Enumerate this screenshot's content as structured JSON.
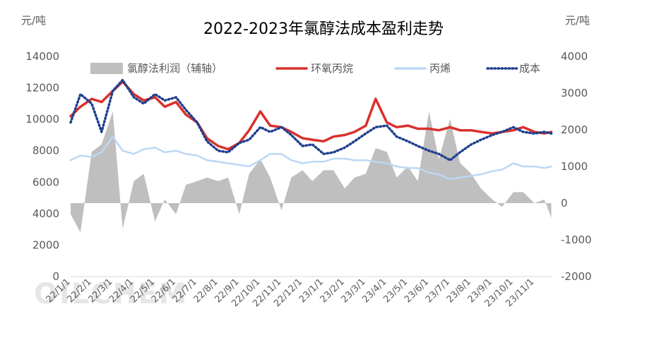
{
  "chart_data": {
    "type": "line",
    "title": "2022-2023年氯醇法成本盈利走势",
    "left_unit": "元/吨",
    "right_unit": "元/吨",
    "watermark": "OILCHEM",
    "ylim": [
      0,
      14000
    ],
    "yticks": [
      "0",
      "2000",
      "4000",
      "6000",
      "8000",
      "10000",
      "12000",
      "14000"
    ],
    "y2lim": [
      -2000,
      4000
    ],
    "y2ticks": [
      "-2000",
      "-1000",
      "0",
      "1000",
      "2000",
      "3000",
      "4000"
    ],
    "x_ticks": [
      "22/1/1",
      "22/2/1",
      "22/3/1",
      "22/4/1",
      "22/5/1",
      "22/6/1",
      "22/7/1",
      "22/8/1",
      "22/9/1",
      "22/10/1",
      "22/11/1",
      "22/12/1",
      "23/1/1",
      "23/2/1",
      "23/3/1",
      "23/4/1",
      "23/5/1",
      "23/6/1",
      "23/7/1",
      "23/8/1",
      "23/9/1",
      "23/10/1",
      "23/11/1"
    ],
    "legend": [
      "氯醇法利润（辅轴）",
      "环氧丙烷",
      "丙烯",
      "成本"
    ],
    "colors": {
      "profit": "#bfbfbf",
      "po": "#d9302b",
      "propylene": "#bcd7f5",
      "cost": "#1f3f8f",
      "axis": "#d9d9d9",
      "text": "#595959"
    },
    "series": [
      {
        "name": "氯醇法利润（辅轴）",
        "axis": "right",
        "type": "area",
        "x": [
          "22/1/1",
          "22/1/15",
          "22/2/1",
          "22/2/15",
          "22/3/1",
          "22/3/15",
          "22/4/1",
          "22/4/15",
          "22/5/1",
          "22/5/15",
          "22/6/1",
          "22/6/15",
          "22/7/1",
          "22/7/15",
          "22/8/1",
          "22/8/15",
          "22/9/1",
          "22/9/15",
          "22/10/1",
          "22/10/15",
          "22/11/1",
          "22/11/15",
          "22/12/1",
          "22/12/15",
          "23/1/1",
          "23/1/15",
          "23/2/1",
          "23/2/15",
          "23/3/1",
          "23/3/15",
          "23/4/1",
          "23/4/15",
          "23/5/1",
          "23/5/15",
          "23/6/1",
          "23/6/15",
          "23/7/1",
          "23/7/15",
          "23/8/1",
          "23/8/15",
          "23/9/1",
          "23/9/15",
          "23/10/1",
          "23/10/15",
          "23/11/1",
          "23/11/15",
          "23/11/25"
        ],
        "values": [
          -300,
          -800,
          1400,
          1600,
          2500,
          -700,
          600,
          800,
          -500,
          100,
          -300,
          500,
          600,
          700,
          600,
          700,
          -300,
          800,
          1200,
          700,
          -200,
          700,
          900,
          600,
          900,
          900,
          400,
          700,
          800,
          1500,
          1400,
          700,
          1000,
          600,
          2500,
          1200,
          2300,
          1100,
          800,
          400,
          100,
          -100,
          300,
          300,
          0,
          100,
          -400
        ]
      },
      {
        "name": "环氧丙烷",
        "axis": "left",
        "x": [
          "22/1/1",
          "22/1/15",
          "22/2/1",
          "22/2/15",
          "22/3/1",
          "22/3/15",
          "22/4/1",
          "22/4/15",
          "22/5/1",
          "22/5/15",
          "22/6/1",
          "22/6/15",
          "22/7/1",
          "22/7/15",
          "22/8/1",
          "22/8/15",
          "22/9/1",
          "22/9/15",
          "22/10/1",
          "22/10/15",
          "22/11/1",
          "22/11/15",
          "22/12/1",
          "22/12/15",
          "23/1/1",
          "23/1/15",
          "23/2/1",
          "23/2/15",
          "23/3/1",
          "23/3/15",
          "23/4/1",
          "23/4/15",
          "23/5/1",
          "23/5/15",
          "23/6/1",
          "23/6/15",
          "23/7/1",
          "23/7/15",
          "23/8/1",
          "23/8/15",
          "23/9/1",
          "23/9/15",
          "23/10/1",
          "23/10/15",
          "23/11/1",
          "23/11/15",
          "23/11/25"
        ],
        "values": [
          10200,
          10800,
          11300,
          11100,
          11800,
          12400,
          11600,
          11200,
          11400,
          10800,
          11100,
          10300,
          9800,
          8800,
          8300,
          8100,
          8500,
          9300,
          10500,
          9600,
          9500,
          9200,
          8800,
          8700,
          8600,
          8900,
          9000,
          9200,
          9600,
          11300,
          9800,
          9500,
          9600,
          9400,
          9400,
          9300,
          9500,
          9300,
          9300,
          9200,
          9100,
          9200,
          9300,
          9500,
          9200,
          9100,
          9200
        ]
      },
      {
        "name": "丙烯",
        "axis": "left",
        "x": [
          "22/1/1",
          "22/1/15",
          "22/2/1",
          "22/2/15",
          "22/3/1",
          "22/3/15",
          "22/4/1",
          "22/4/15",
          "22/5/1",
          "22/5/15",
          "22/6/1",
          "22/6/15",
          "22/7/1",
          "22/7/15",
          "22/8/1",
          "22/8/15",
          "22/9/1",
          "22/9/15",
          "22/10/1",
          "22/10/15",
          "22/11/1",
          "22/11/15",
          "22/12/1",
          "22/12/15",
          "23/1/1",
          "23/1/15",
          "23/2/1",
          "23/2/15",
          "23/3/1",
          "23/3/15",
          "23/4/1",
          "23/4/15",
          "23/5/1",
          "23/5/15",
          "23/6/1",
          "23/6/15",
          "23/7/1",
          "23/7/15",
          "23/8/1",
          "23/8/15",
          "23/9/1",
          "23/9/15",
          "23/10/1",
          "23/10/15",
          "23/11/1",
          "23/11/15",
          "23/11/25"
        ],
        "values": [
          7400,
          7700,
          7600,
          7900,
          8900,
          8000,
          7800,
          8100,
          8200,
          7900,
          8000,
          7800,
          7700,
          7400,
          7300,
          7200,
          7100,
          7000,
          7400,
          7800,
          7800,
          7400,
          7200,
          7300,
          7300,
          7500,
          7500,
          7400,
          7400,
          7300,
          7200,
          7000,
          6900,
          6900,
          6600,
          6500,
          6200,
          6300,
          6400,
          6500,
          6700,
          6800,
          7200,
          7000,
          7000,
          6900,
          7000
        ]
      },
      {
        "name": "成本",
        "axis": "left",
        "x": [
          "22/1/1",
          "22/1/15",
          "22/2/1",
          "22/2/15",
          "22/3/1",
          "22/3/15",
          "22/4/1",
          "22/4/15",
          "22/5/1",
          "22/5/15",
          "22/6/1",
          "22/6/15",
          "22/7/1",
          "22/7/15",
          "22/8/1",
          "22/8/15",
          "22/9/1",
          "22/9/15",
          "22/10/1",
          "22/10/15",
          "22/11/1",
          "22/11/15",
          "22/12/1",
          "22/12/15",
          "23/1/1",
          "23/1/15",
          "23/2/1",
          "23/2/15",
          "23/3/1",
          "23/3/15",
          "23/4/1",
          "23/4/15",
          "23/5/1",
          "23/5/15",
          "23/6/1",
          "23/6/15",
          "23/7/1",
          "23/7/15",
          "23/8/1",
          "23/8/15",
          "23/9/1",
          "23/9/15",
          "23/10/1",
          "23/10/15",
          "23/11/1",
          "23/11/15",
          "23/11/25"
        ],
        "values": [
          9800,
          11600,
          11000,
          9200,
          11800,
          12500,
          11400,
          11000,
          11600,
          11200,
          11400,
          10600,
          9800,
          8600,
          8000,
          7900,
          8500,
          8700,
          9500,
          9200,
          9500,
          9000,
          8300,
          8400,
          7800,
          7900,
          8200,
          8600,
          9100,
          9500,
          9600,
          8900,
          8600,
          8300,
          8000,
          7800,
          7400,
          7900,
          8400,
          8700,
          9000,
          9200,
          9500,
          9200,
          9100,
          9200,
          9100
        ]
      }
    ]
  }
}
